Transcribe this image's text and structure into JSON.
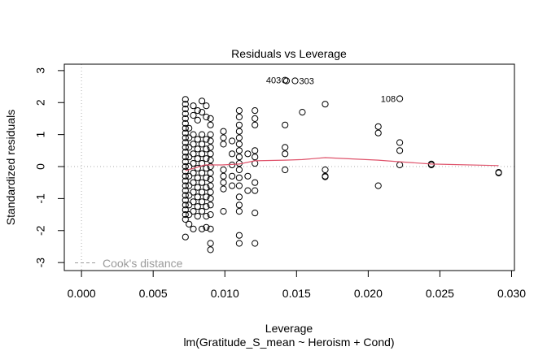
{
  "chart_data": {
    "type": "scatter",
    "title": "Residuals vs Leverage",
    "xlabel": "Leverage",
    "subtitle": "lm(Gratitude_S_mean ~ Heroism + Cond)",
    "ylabel": "Standardized residuals",
    "xlim": [
      -0.0012,
      0.0302
    ],
    "ylim": [
      -3.25,
      3.2
    ],
    "x_ticks": [
      0.0,
      0.005,
      0.01,
      0.015,
      0.02,
      0.025,
      0.03
    ],
    "x_tick_labels": [
      "0.000",
      "0.005",
      "0.010",
      "0.015",
      "0.020",
      "0.025",
      "0.030"
    ],
    "y_ticks": [
      -3,
      -2,
      -1,
      0,
      1,
      2,
      3
    ],
    "y_tick_labels": [
      "-3",
      "-2",
      "-1",
      "0",
      "1",
      "2",
      "3"
    ],
    "reference_lines": {
      "h": 0,
      "v": 0,
      "style": "dotted",
      "color": "#bebebe"
    },
    "legend": {
      "entries": [
        "Cook's distance"
      ],
      "placement": "bottom-left",
      "color": "#9a9a9a",
      "linestyle": "dashed"
    },
    "smooth_color": "#df536b",
    "smooth_line": {
      "x": [
        0.00725,
        0.0086,
        0.0098,
        0.011,
        0.0121,
        0.0142,
        0.0154,
        0.017,
        0.0207,
        0.0222,
        0.0244,
        0.0291
      ],
      "y": [
        -0.13,
        0.05,
        0.05,
        0.08,
        0.18,
        0.2,
        0.22,
        0.28,
        0.2,
        0.15,
        0.08,
        0.03
      ]
    },
    "series": [
      {
        "name": "residuals",
        "color": "#000000",
        "points": [
          [
            0.00725,
            2.1
          ],
          [
            0.00725,
            1.95
          ],
          [
            0.00725,
            1.8
          ],
          [
            0.00725,
            1.65
          ],
          [
            0.00725,
            1.5
          ],
          [
            0.00725,
            1.35
          ],
          [
            0.00725,
            1.2
          ],
          [
            0.00725,
            1.05
          ],
          [
            0.00725,
            0.9
          ],
          [
            0.00725,
            0.75
          ],
          [
            0.00725,
            0.6
          ],
          [
            0.00725,
            0.45
          ],
          [
            0.00725,
            0.3
          ],
          [
            0.00725,
            0.15
          ],
          [
            0.00725,
            0.0
          ],
          [
            0.00725,
            -0.15
          ],
          [
            0.00725,
            -0.3
          ],
          [
            0.00725,
            -0.45
          ],
          [
            0.00725,
            -0.6
          ],
          [
            0.00725,
            -0.75
          ],
          [
            0.00725,
            -0.9
          ],
          [
            0.00725,
            -1.05
          ],
          [
            0.00725,
            -1.2
          ],
          [
            0.00725,
            -1.35
          ],
          [
            0.00725,
            -1.5
          ],
          [
            0.00725,
            -1.65
          ],
          [
            0.00725,
            -2.2
          ],
          [
            0.0075,
            1.2
          ],
          [
            0.0075,
            0.9
          ],
          [
            0.0075,
            0.6
          ],
          [
            0.0075,
            0.3
          ],
          [
            0.0075,
            0.0
          ],
          [
            0.0075,
            -0.3
          ],
          [
            0.0075,
            -0.6
          ],
          [
            0.0075,
            -0.9
          ],
          [
            0.0075,
            -1.2
          ],
          [
            0.0075,
            -1.5
          ],
          [
            0.0075,
            -1.8
          ],
          [
            0.0078,
            1.9
          ],
          [
            0.0078,
            1.6
          ],
          [
            0.0078,
            1.0
          ],
          [
            0.0078,
            0.7
          ],
          [
            0.0078,
            0.4
          ],
          [
            0.0078,
            0.1
          ],
          [
            0.0078,
            -0.2
          ],
          [
            0.0078,
            -0.5
          ],
          [
            0.0078,
            -0.8
          ],
          [
            0.0078,
            -1.1
          ],
          [
            0.0078,
            -1.4
          ],
          [
            0.0078,
            -1.95
          ],
          [
            0.0081,
            1.75
          ],
          [
            0.0081,
            1.45
          ],
          [
            0.0081,
            0.85
          ],
          [
            0.0081,
            0.55
          ],
          [
            0.0081,
            0.25
          ],
          [
            0.0081,
            -0.05
          ],
          [
            0.0081,
            -0.35
          ],
          [
            0.0081,
            -0.65
          ],
          [
            0.0081,
            -0.95
          ],
          [
            0.0081,
            -1.25
          ],
          [
            0.0081,
            -1.55
          ],
          [
            0.0084,
            2.05
          ],
          [
            0.0084,
            1.7
          ],
          [
            0.0084,
            1.0
          ],
          [
            0.0084,
            0.7
          ],
          [
            0.0084,
            0.4
          ],
          [
            0.0084,
            0.1
          ],
          [
            0.0084,
            -0.2
          ],
          [
            0.0084,
            -0.5
          ],
          [
            0.0084,
            -0.8
          ],
          [
            0.0084,
            -1.1
          ],
          [
            0.0084,
            -1.4
          ],
          [
            0.0084,
            -1.95
          ],
          [
            0.0087,
            1.9
          ],
          [
            0.0087,
            1.55
          ],
          [
            0.0087,
            0.85
          ],
          [
            0.0087,
            0.55
          ],
          [
            0.0087,
            0.25
          ],
          [
            0.0087,
            -0.05
          ],
          [
            0.0087,
            -0.35
          ],
          [
            0.0087,
            -0.65
          ],
          [
            0.0087,
            -0.95
          ],
          [
            0.0087,
            -1.25
          ],
          [
            0.0087,
            -1.55
          ],
          [
            0.0087,
            -1.9
          ],
          [
            0.009,
            1.5
          ],
          [
            0.009,
            1.3
          ],
          [
            0.009,
            1.0
          ],
          [
            0.009,
            0.8
          ],
          [
            0.009,
            0.6
          ],
          [
            0.009,
            0.4
          ],
          [
            0.009,
            0.2
          ],
          [
            0.009,
            0.0
          ],
          [
            0.009,
            -0.2
          ],
          [
            0.009,
            -0.4
          ],
          [
            0.009,
            -0.6
          ],
          [
            0.009,
            -0.8
          ],
          [
            0.009,
            -1.0
          ],
          [
            0.009,
            -1.2
          ],
          [
            0.009,
            -1.5
          ],
          [
            0.009,
            -1.95
          ],
          [
            0.009,
            -2.4
          ],
          [
            0.009,
            -2.6
          ],
          [
            0.0099,
            1.1
          ],
          [
            0.0099,
            0.9
          ],
          [
            0.0099,
            0.7
          ],
          [
            0.0099,
            -0.1
          ],
          [
            0.0099,
            -0.3
          ],
          [
            0.0099,
            -0.5
          ],
          [
            0.0099,
            -0.7
          ],
          [
            0.0099,
            -1.4
          ],
          [
            0.0105,
            0.8
          ],
          [
            0.0105,
            0.4
          ],
          [
            0.0105,
            0.05
          ],
          [
            0.0105,
            -0.3
          ],
          [
            0.0105,
            -0.6
          ],
          [
            0.011,
            1.75
          ],
          [
            0.011,
            1.55
          ],
          [
            0.011,
            1.3
          ],
          [
            0.011,
            1.1
          ],
          [
            0.011,
            0.9
          ],
          [
            0.011,
            0.7
          ],
          [
            0.011,
            0.5
          ],
          [
            0.011,
            0.3
          ],
          [
            0.011,
            0.1
          ],
          [
            0.011,
            -0.1
          ],
          [
            0.011,
            -0.35
          ],
          [
            0.011,
            -0.6
          ],
          [
            0.011,
            -0.95
          ],
          [
            0.011,
            -1.2
          ],
          [
            0.011,
            -1.4
          ],
          [
            0.011,
            -2.15
          ],
          [
            0.011,
            -2.4
          ],
          [
            0.0116,
            0.4
          ],
          [
            0.0116,
            -0.3
          ],
          [
            0.0116,
            -0.75
          ],
          [
            0.0121,
            1.75
          ],
          [
            0.0121,
            1.5
          ],
          [
            0.0121,
            1.3
          ],
          [
            0.0121,
            0.5
          ],
          [
            0.0121,
            0.3
          ],
          [
            0.0121,
            0.1
          ],
          [
            0.0121,
            -0.5
          ],
          [
            0.0121,
            -0.75
          ],
          [
            0.0121,
            -1.45
          ],
          [
            0.0121,
            -2.4
          ],
          [
            0.0142,
            2.7
          ],
          [
            0.0143,
            2.68
          ],
          [
            0.0142,
            1.3
          ],
          [
            0.0142,
            0.6
          ],
          [
            0.0142,
            0.4
          ],
          [
            0.0142,
            -0.1
          ],
          [
            0.0149,
            2.68
          ],
          [
            0.0154,
            1.7
          ],
          [
            0.017,
            1.95
          ],
          [
            0.017,
            -0.1
          ],
          [
            0.017,
            -0.3
          ],
          [
            0.017,
            -0.32
          ],
          [
            0.0207,
            1.25
          ],
          [
            0.0207,
            1.05
          ],
          [
            0.0207,
            -0.6
          ],
          [
            0.0222,
            2.12
          ],
          [
            0.0222,
            0.75
          ],
          [
            0.0222,
            0.5
          ],
          [
            0.0222,
            0.05
          ],
          [
            0.0244,
            0.08
          ],
          [
            0.0244,
            0.05
          ],
          [
            0.0291,
            -0.18
          ],
          [
            0.0291,
            -0.2
          ]
        ]
      }
    ],
    "annotations": [
      {
        "text": "403",
        "x": 0.0142,
        "y": 2.7
      },
      {
        "text": "303",
        "x": 0.0149,
        "y": 2.68
      },
      {
        "text": "108",
        "x": 0.0222,
        "y": 2.12
      }
    ]
  }
}
